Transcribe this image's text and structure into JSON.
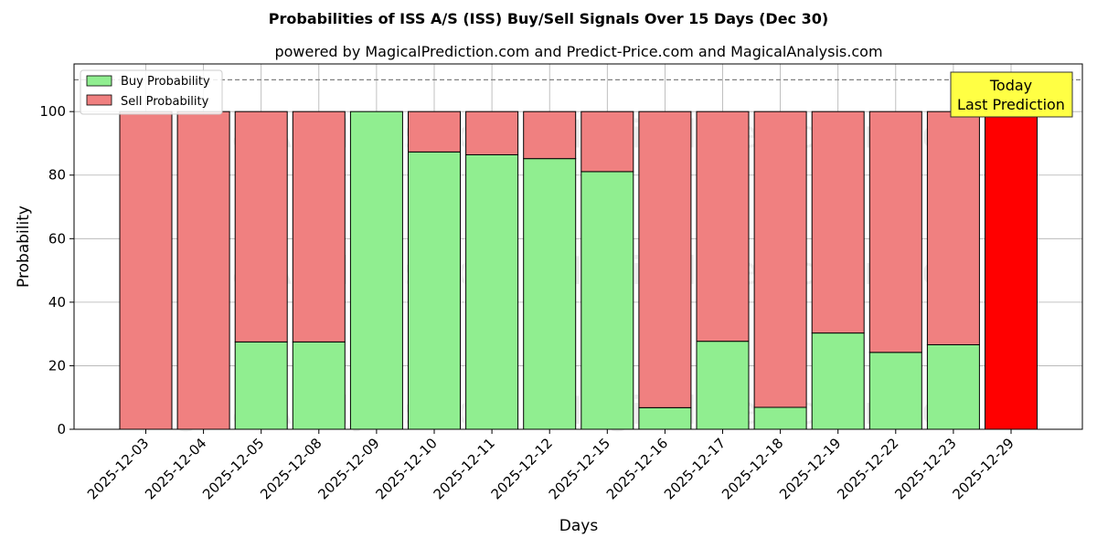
{
  "chart_data": {
    "type": "bar",
    "stacked": true,
    "title": "Probabilities of ISS A/S (ISS) Buy/Sell Signals Over 15 Days (Dec 30)",
    "subtitle": "powered by MagicalPrediction.com and Predict-Price.com and MagicalAnalysis.com",
    "xlabel": "Days",
    "ylabel": "Probability",
    "ylim": [
      0,
      115
    ],
    "yticks": [
      0,
      20,
      40,
      60,
      80,
      100
    ],
    "grid": true,
    "legend_position": "top-left",
    "categories": [
      "2025-12-03",
      "2025-12-04",
      "2025-12-05",
      "2025-12-08",
      "2025-12-09",
      "2025-12-10",
      "2025-12-11",
      "2025-12-12",
      "2025-12-15",
      "2025-12-16",
      "2025-12-17",
      "2025-12-18",
      "2025-12-19",
      "2025-12-22",
      "2025-12-23",
      "2025-12-29"
    ],
    "series": [
      {
        "name": "Buy Probability",
        "color": "#90EE90",
        "values": [
          0,
          0,
          27.5,
          27.5,
          100,
          87.3,
          86.4,
          85.2,
          81.1,
          6.8,
          27.7,
          6.9,
          30.3,
          24.2,
          26.6,
          0
        ]
      },
      {
        "name": "Sell Probability",
        "color": "#F08080",
        "values": [
          100,
          100,
          72.5,
          72.5,
          0,
          12.7,
          13.6,
          14.8,
          18.9,
          93.2,
          72.3,
          93.1,
          69.7,
          75.8,
          73.4,
          100
        ]
      }
    ],
    "highlight": {
      "index": 15,
      "color": "#FF0000"
    },
    "reference_line": {
      "y": 110,
      "style": "dashed",
      "color": "#808080"
    },
    "annotation": {
      "lines": [
        "Today",
        "Last Prediction"
      ],
      "background": "#FFFF44"
    },
    "watermarks": [
      "MagicalAnalysis.com",
      "MagicalPrediction.com"
    ]
  }
}
